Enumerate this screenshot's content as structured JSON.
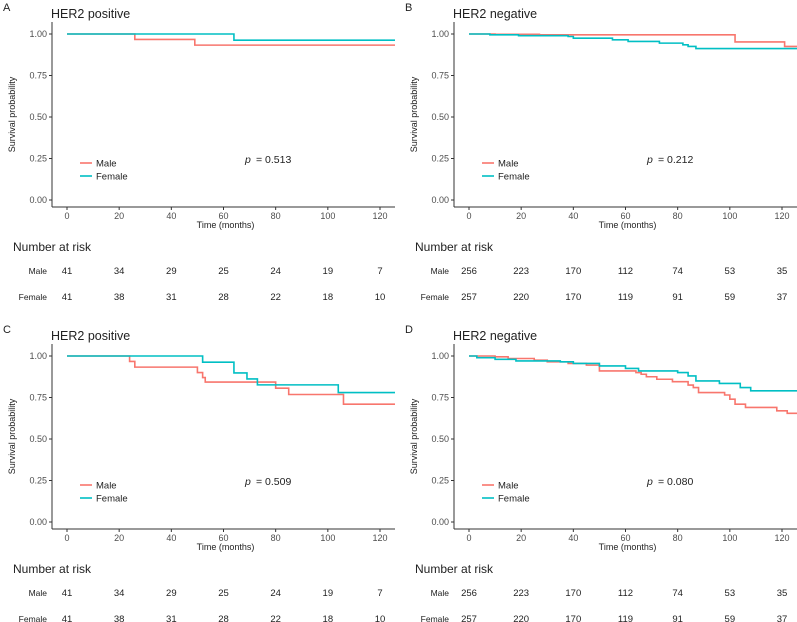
{
  "chart_data": [
    {
      "type": "line",
      "panel_label": "A",
      "title": "HER2 positive",
      "xlabel": "Time (months)",
      "ylabel": "Survival probability",
      "xlim": [
        0,
        125
      ],
      "ylim": [
        0,
        1
      ],
      "xticks": [
        "0",
        "20",
        "40",
        "60",
        "80",
        "100",
        "120"
      ],
      "yticks": [
        "0.00",
        "0.25",
        "0.50",
        "0.75",
        "1.00"
      ],
      "p_label": "p",
      "p_value": "= 0.513",
      "legend": [
        "Male",
        "Female"
      ],
      "series": [
        {
          "name": "Male",
          "color": "#F8766D",
          "steps": [
            [
              0,
              1
            ],
            [
              26,
              0.967
            ],
            [
              49,
              0.933
            ]
          ]
        },
        {
          "name": "Female",
          "color": "#00BFC4",
          "steps": [
            [
              0,
              1
            ],
            [
              64,
              0.963
            ]
          ]
        }
      ],
      "risk_table": {
        "title": "Number at risk",
        "rows": [
          {
            "label": "Male",
            "values": [
              "41",
              "34",
              "29",
              "25",
              "24",
              "19",
              "7"
            ]
          },
          {
            "label": "Female",
            "values": [
              "41",
              "38",
              "31",
              "28",
              "22",
              "18",
              "10"
            ]
          }
        ]
      }
    },
    {
      "type": "line",
      "panel_label": "B",
      "title": "HER2 negative",
      "xlabel": "Time (months)",
      "ylabel": "Survival probability",
      "xlim": [
        0,
        125
      ],
      "ylim": [
        0,
        1
      ],
      "xticks": [
        "0",
        "20",
        "40",
        "60",
        "80",
        "100",
        "120"
      ],
      "yticks": [
        "0.00",
        "0.25",
        "0.50",
        "0.75",
        "1.00"
      ],
      "p_label": "p",
      "p_value": "= 0.212",
      "legend": [
        "Male",
        "Female"
      ],
      "series": [
        {
          "name": "Male",
          "color": "#F8766D",
          "steps": [
            [
              0,
              1
            ],
            [
              10,
              0.998
            ],
            [
              27,
              0.995
            ],
            [
              102,
              0.952
            ],
            [
              121,
              0.925
            ]
          ]
        },
        {
          "name": "Female",
          "color": "#00BFC4",
          "steps": [
            [
              0,
              1
            ],
            [
              8,
              0.995
            ],
            [
              19,
              0.99
            ],
            [
              38,
              0.985
            ],
            [
              40,
              0.975
            ],
            [
              55,
              0.965
            ],
            [
              61,
              0.955
            ],
            [
              73,
              0.945
            ],
            [
              82,
              0.935
            ],
            [
              84,
              0.925
            ],
            [
              87,
              0.912
            ]
          ]
        }
      ],
      "risk_table": {
        "title": "Number at risk",
        "rows": [
          {
            "label": "Male",
            "values": [
              "256",
              "223",
              "170",
              "112",
              "74",
              "53",
              "35"
            ]
          },
          {
            "label": "Female",
            "values": [
              "257",
              "220",
              "170",
              "119",
              "91",
              "59",
              "37"
            ]
          }
        ]
      }
    },
    {
      "type": "line",
      "panel_label": "C",
      "title": "HER2 positive",
      "xlabel": "Time (months)",
      "ylabel": "Survival probability",
      "xlim": [
        0,
        125
      ],
      "ylim": [
        0,
        1
      ],
      "xticks": [
        "0",
        "20",
        "40",
        "60",
        "80",
        "100",
        "120"
      ],
      "yticks": [
        "0.00",
        "0.25",
        "0.50",
        "0.75",
        "1.00"
      ],
      "p_label": "p",
      "p_value": "= 0.509",
      "legend": [
        "Male",
        "Female"
      ],
      "series": [
        {
          "name": "Male",
          "color": "#F8766D",
          "steps": [
            [
              0,
              1
            ],
            [
              24,
              0.967
            ],
            [
              26,
              0.933
            ],
            [
              50,
              0.9
            ],
            [
              52,
              0.87
            ],
            [
              53,
              0.843
            ],
            [
              80,
              0.806
            ],
            [
              85,
              0.768
            ],
            [
              106,
              0.71
            ]
          ]
        },
        {
          "name": "Female",
          "color": "#00BFC4",
          "steps": [
            [
              0,
              1
            ],
            [
              52,
              0.963
            ],
            [
              64,
              0.898
            ],
            [
              69,
              0.862
            ],
            [
              73,
              0.826
            ],
            [
              104,
              0.78
            ]
          ]
        }
      ],
      "risk_table": {
        "title": "Number at risk",
        "rows": [
          {
            "label": "Male",
            "values": [
              "41",
              "34",
              "29",
              "25",
              "24",
              "19",
              "7"
            ]
          },
          {
            "label": "Female",
            "values": [
              "41",
              "38",
              "31",
              "28",
              "22",
              "18",
              "10"
            ]
          }
        ]
      }
    },
    {
      "type": "line",
      "panel_label": "D",
      "title": "HER2 negative",
      "xlabel": "Time (months)",
      "ylabel": "Survival probability",
      "xlim": [
        0,
        125
      ],
      "ylim": [
        0,
        1
      ],
      "xticks": [
        "0",
        "20",
        "40",
        "60",
        "80",
        "100",
        "120"
      ],
      "yticks": [
        "0.00",
        "0.25",
        "0.50",
        "0.75",
        "1.00"
      ],
      "p_label": "p",
      "p_value": "= 0.080",
      "legend": [
        "Male",
        "Female"
      ],
      "series": [
        {
          "name": "Male",
          "color": "#F8766D",
          "steps": [
            [
              0,
              1
            ],
            [
              10,
              0.995
            ],
            [
              15,
              0.985
            ],
            [
              25,
              0.975
            ],
            [
              30,
              0.965
            ],
            [
              38,
              0.955
            ],
            [
              45,
              0.945
            ],
            [
              50,
              0.91
            ],
            [
              64,
              0.9
            ],
            [
              66,
              0.89
            ],
            [
              68,
              0.875
            ],
            [
              72,
              0.86
            ],
            [
              78,
              0.845
            ],
            [
              84,
              0.825
            ],
            [
              86,
              0.81
            ],
            [
              88,
              0.78
            ],
            [
              98,
              0.765
            ],
            [
              100,
              0.74
            ],
            [
              102,
              0.71
            ],
            [
              106,
              0.69
            ],
            [
              118,
              0.67
            ],
            [
              122,
              0.655
            ]
          ]
        },
        {
          "name": "Female",
          "color": "#00BFC4",
          "steps": [
            [
              0,
              1
            ],
            [
              3,
              0.99
            ],
            [
              10,
              0.98
            ],
            [
              18,
              0.97
            ],
            [
              35,
              0.965
            ],
            [
              40,
              0.955
            ],
            [
              50,
              0.94
            ],
            [
              60,
              0.925
            ],
            [
              65,
              0.91
            ],
            [
              80,
              0.9
            ],
            [
              84,
              0.88
            ],
            [
              87,
              0.85
            ],
            [
              96,
              0.835
            ],
            [
              104,
              0.81
            ],
            [
              108,
              0.79
            ]
          ]
        }
      ],
      "risk_table": {
        "title": "Number at risk",
        "rows": [
          {
            "label": "Male",
            "values": [
              "256",
              "223",
              "170",
              "112",
              "74",
              "53",
              "35"
            ]
          },
          {
            "label": "Female",
            "values": [
              "257",
              "220",
              "170",
              "119",
              "91",
              "59",
              "37"
            ]
          }
        ]
      }
    }
  ]
}
